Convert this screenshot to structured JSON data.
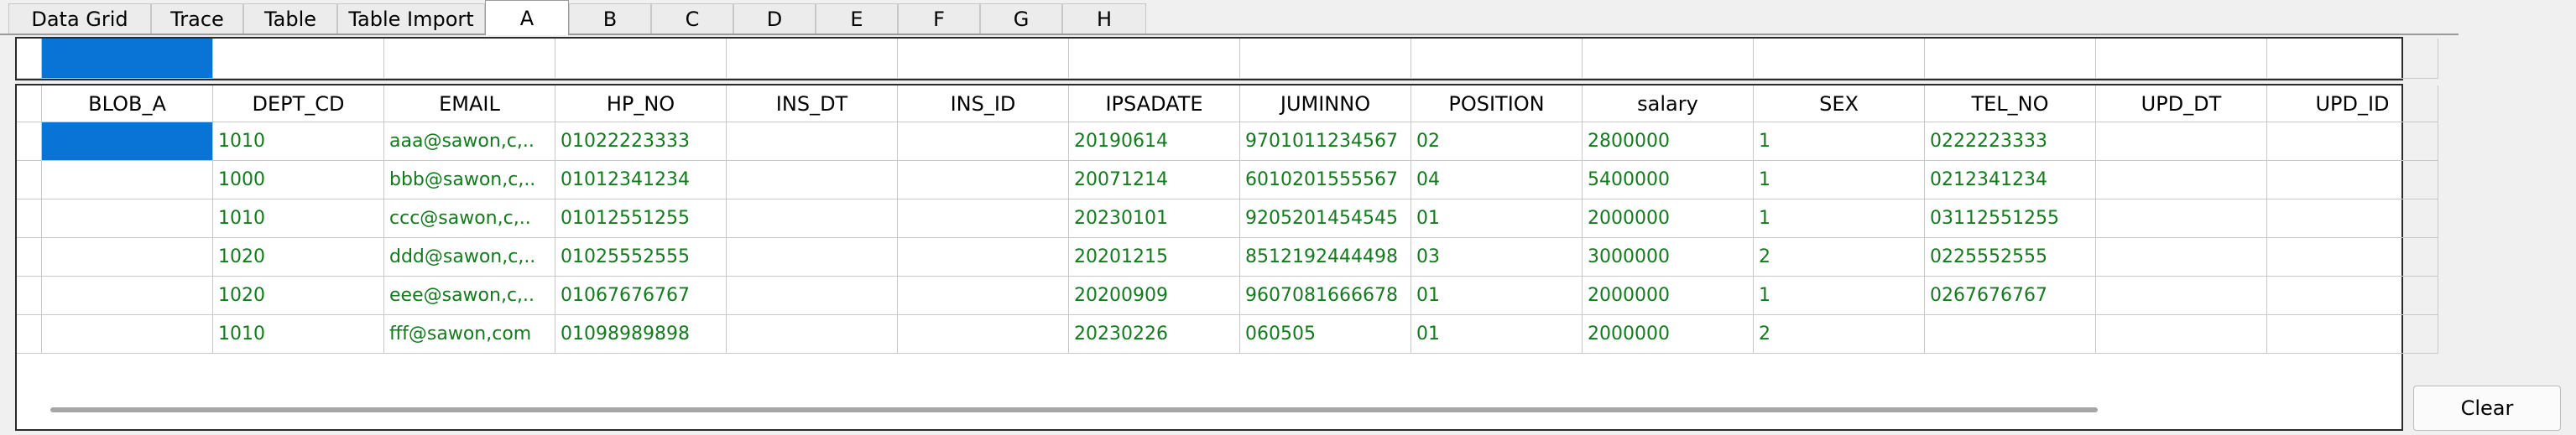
{
  "tabs": [
    "Data Grid",
    "Trace",
    "Table",
    "Table Import",
    "A",
    "B",
    "C",
    "D",
    "E",
    "F",
    "G",
    "H"
  ],
  "active_tab": "A",
  "grid": {
    "columns": [
      "BLOB_A",
      "DEPT_CD",
      "EMAIL",
      "HP_NO",
      "INS_DT",
      "INS_ID",
      "IPSADATE",
      "JUMINNO",
      "POSITION",
      "salary",
      "SEX",
      "TEL_NO",
      "UPD_DT",
      "UPD_ID"
    ],
    "rows": [
      [
        "",
        "1010",
        "aaa@sawon,c,..",
        "01022223333",
        "",
        "",
        "20190614",
        "9701011234567",
        "02",
        "2800000",
        "1",
        "0222223333",
        "",
        ""
      ],
      [
        "",
        "1000",
        "bbb@sawon,c,..",
        "01012341234",
        "",
        "",
        "20071214",
        "6010201555567",
        "04",
        "5400000",
        "1",
        "0212341234",
        "",
        ""
      ],
      [
        "",
        "1010",
        "ccc@sawon,c,..",
        "01012551255",
        "",
        "",
        "20230101",
        "9205201454545",
        "01",
        "2000000",
        "1",
        "03112551255",
        "",
        ""
      ],
      [
        "",
        "1020",
        "ddd@sawon,c,..",
        "01025552555",
        "",
        "",
        "20201215",
        "8512192444498",
        "03",
        "3000000",
        "2",
        "0225552555",
        "",
        ""
      ],
      [
        "",
        "1020",
        "eee@sawon,c,..",
        "01067676767",
        "",
        "",
        "20200909",
        "9607081666678",
        "01",
        "2000000",
        "1",
        "0267676767",
        "",
        ""
      ],
      [
        "",
        "1010",
        "fff@sawon,com",
        "01098989898",
        "",
        "",
        "20230226",
        "060505",
        "01",
        "2000000",
        "2",
        "",
        "",
        ""
      ]
    ]
  },
  "buttons": {
    "clear": "Clear"
  },
  "colors": {
    "selection": "#0a74d6",
    "data_text": "#147a1e",
    "grid_line": "#c8c8c8"
  }
}
